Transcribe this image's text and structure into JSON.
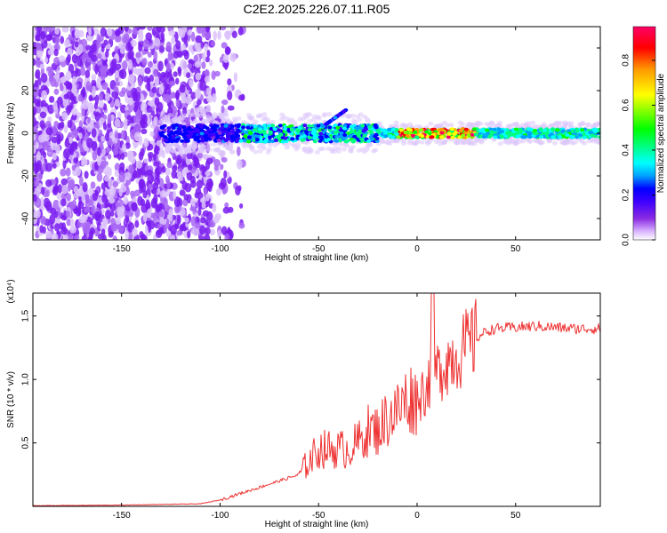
{
  "title": "C2E2.2025.226.07.11.R05",
  "chart_data": [
    {
      "type": "heatmap",
      "title": "",
      "xlabel": "Height of straight line (km)",
      "ylabel": "Frequency (Hz)",
      "xlim": [
        -195,
        93
      ],
      "ylim": [
        -50,
        50
      ],
      "x_ticks": [
        "-150",
        "-100",
        "-50",
        "0",
        "50"
      ],
      "y_ticks": [
        "-40",
        "-20",
        "0",
        "20",
        "40"
      ],
      "colorbar": {
        "label": "Normalized spectral amplitude",
        "range": [
          0,
          0.95
        ],
        "ticks": [
          "0.0",
          "0.2",
          "0.4",
          "0.6",
          "0.8"
        ],
        "colormap": [
          "#ffffff",
          "#d9b3ff",
          "#8a2be2",
          "#3d00ff",
          "#0000ff",
          "#00a0ff",
          "#00ffff",
          "#00ff7f",
          "#00ff00",
          "#7fff00",
          "#ffff00",
          "#ff9900",
          "#ff0000",
          "#ff0066"
        ]
      },
      "features": {
        "noise_region_x": [
          -195,
          -88
        ],
        "signal_start_x": -130,
        "signal_center_hz": 0,
        "secondary_trace_x": [
          -48,
          -36
        ],
        "secondary_trace_hz": [
          3,
          11
        ],
        "peak_region_x": [
          -10,
          30
        ]
      }
    },
    {
      "type": "line",
      "title": "",
      "xlabel": "Height of straight line (km)",
      "ylabel": "SNR (10 * v/v)",
      "y_scale_label": "(x10⁴)",
      "xlim": [
        -195,
        93
      ],
      "ylim": [
        0,
        1.68
      ],
      "x_ticks": [
        "-150",
        "-100",
        "-50",
        "0",
        "50"
      ],
      "y_ticks": [
        "0.5",
        "1.0",
        "1.5"
      ],
      "series": [
        {
          "color": "#ee3333",
          "x": [
            -195,
            -150,
            -110,
            -100,
            -90,
            -80,
            -70,
            -60,
            -55,
            -50,
            -45,
            -40,
            -35,
            -30,
            -25,
            -20,
            -15,
            -10,
            -5,
            0,
            5,
            8,
            10,
            15,
            20,
            25,
            30,
            35,
            40,
            50,
            60,
            70,
            80,
            93
          ],
          "y": [
            0.005,
            0.01,
            0.02,
            0.05,
            0.1,
            0.15,
            0.2,
            0.25,
            0.35,
            0.45,
            0.45,
            0.45,
            0.45,
            0.5,
            0.6,
            0.6,
            0.7,
            0.75,
            0.85,
            0.85,
            0.95,
            1.1,
            1.05,
            1.15,
            1.2,
            1.25,
            1.32,
            1.38,
            1.4,
            1.41,
            1.42,
            1.41,
            1.4,
            1.4
          ]
        }
      ]
    }
  ]
}
